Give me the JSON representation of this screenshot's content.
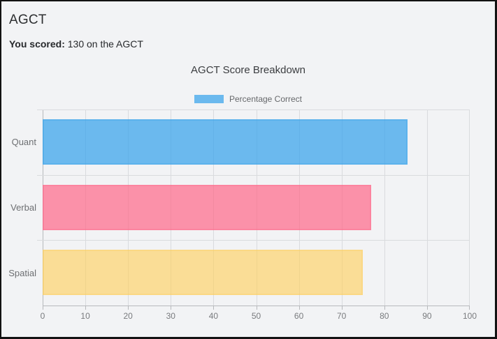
{
  "header": {
    "title": "AGCT",
    "scored_label": "You scored:",
    "scored_text": "130 on the AGCT"
  },
  "chart_data": {
    "type": "bar",
    "orientation": "horizontal",
    "title": "AGCT Score Breakdown",
    "legend": {
      "label": "Percentage Correct",
      "position": "top",
      "swatch_color": "rgba(54,162,235,0.72)"
    },
    "categories": [
      "Quant",
      "Verbal",
      "Spatial"
    ],
    "series": [
      {
        "name": "Percentage Correct",
        "values": [
          85.5,
          77,
          75
        ]
      }
    ],
    "bar_fill_colors": [
      "rgba(54,162,235,0.72)",
      "rgba(255,99,132,0.68)",
      "rgba(255,206,86,0.60)"
    ],
    "bar_border_colors": [
      "rgba(54,162,235,0.28)",
      "rgba(255,99,132,0.28)",
      "rgba(255,206,86,0.28)"
    ],
    "xlim": [
      0,
      100
    ],
    "xticks": [
      0,
      10,
      20,
      30,
      40,
      50,
      60,
      70,
      80,
      90,
      100
    ],
    "grid": true,
    "axis_color": "#b7b9bc",
    "gridline_color": "#d9dbde",
    "tick_label_color": "#797b7e",
    "category_label_color": "#6d6f72"
  },
  "theme": {
    "page_bg": "#f2f3f5",
    "frame_color": "#121212"
  }
}
